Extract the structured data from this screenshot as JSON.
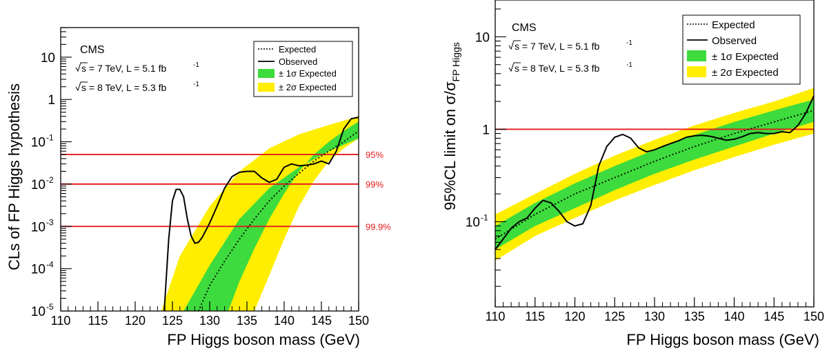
{
  "chart_data": [
    {
      "type": "line",
      "ylabel": "CLs of FP Higgs hypothesis",
      "xlabel": "FP Higgs boson mass (GeV)",
      "xlim": [
        110,
        150
      ],
      "ylim": [
        1e-05,
        50
      ],
      "log_y": true,
      "x_ticks": [
        "110",
        "115",
        "120",
        "125",
        "130",
        "135",
        "140",
        "145",
        "150"
      ],
      "y_ticks": [
        {
          "value": 1e-05,
          "base": "10",
          "exp": "-5"
        },
        {
          "value": 0.0001,
          "base": "10",
          "exp": "-4"
        },
        {
          "value": 0.001,
          "base": "10",
          "exp": "-3"
        },
        {
          "value": 0.01,
          "base": "10",
          "exp": "-2"
        },
        {
          "value": 0.1,
          "base": "10",
          "exp": "-1"
        },
        {
          "value": 1,
          "base": "1",
          "exp": ""
        },
        {
          "value": 10,
          "base": "10",
          "exp": ""
        }
      ],
      "annotation": {
        "cms": "CMS",
        "line1_prefix": "s = 7 TeV, L = 5.1 fb",
        "line2_prefix": "s = 8 TeV, L = 5.3 fb",
        "sup": "-1"
      },
      "legend_position": "top-right",
      "legend": [
        "Expected",
        "Observed",
        "± 1σ Expected",
        "± 2σ Expected"
      ],
      "reference_lines": [
        {
          "y": 0.05,
          "label": "95%"
        },
        {
          "y": 0.01,
          "label": "99%"
        },
        {
          "y": 0.001,
          "label": "99.9%"
        }
      ],
      "expected": {
        "x": [
          128.5,
          130,
          132,
          134,
          136,
          138,
          140,
          142,
          144,
          146,
          148,
          150
        ],
        "y": [
          1e-05,
          4e-05,
          0.00015,
          0.0005,
          0.0015,
          0.004,
          0.009,
          0.018,
          0.035,
          0.06,
          0.1,
          0.18
        ]
      },
      "band1_lo": {
        "x": [
          126.5,
          130,
          134,
          138,
          142,
          146,
          150
        ],
        "y": [
          1e-05,
          0.00012,
          0.0015,
          0.008,
          0.025,
          0.06,
          0.12
        ]
      },
      "band1_hi": {
        "x": [
          132.5,
          134,
          136,
          138,
          140,
          142,
          144,
          146,
          148,
          150
        ],
        "y": [
          1e-05,
          5e-05,
          0.0003,
          0.0015,
          0.006,
          0.02,
          0.05,
          0.1,
          0.18,
          0.3
        ]
      },
      "band2_lo": {
        "x": [
          123.5,
          126,
          130,
          134,
          138,
          142,
          146,
          150
        ],
        "y": [
          1e-05,
          0.0002,
          0.003,
          0.02,
          0.07,
          0.15,
          0.25,
          0.4
        ]
      },
      "band2_hi": {
        "x": [
          136,
          138,
          140,
          142,
          144,
          146,
          148,
          150
        ],
        "y": [
          1e-05,
          7e-05,
          0.0005,
          0.003,
          0.012,
          0.035,
          0.07,
          0.12
        ]
      },
      "observed": {
        "x": [
          123.9,
          124.5,
          125,
          125.5,
          126,
          126.5,
          127,
          127.5,
          128,
          128.5,
          129,
          130,
          131,
          132,
          133,
          134,
          135,
          136,
          137,
          138,
          139,
          140,
          141,
          142,
          143,
          144,
          145,
          146,
          147,
          148,
          149,
          150
        ],
        "y": [
          1e-05,
          0.0005,
          0.004,
          0.0075,
          0.0075,
          0.005,
          0.0015,
          0.0006,
          0.0004,
          0.00042,
          0.00055,
          0.0012,
          0.003,
          0.008,
          0.015,
          0.019,
          0.02,
          0.02,
          0.014,
          0.011,
          0.013,
          0.025,
          0.03,
          0.027,
          0.028,
          0.03,
          0.035,
          0.03,
          0.06,
          0.2,
          0.35,
          0.38
        ]
      }
    },
    {
      "type": "line",
      "ylabel_prefix": "95%CL limit on σ/σ",
      "ylabel_sub": "FP Higgs",
      "xlabel": "FP Higgs boson mass (GeV)",
      "xlim": [
        110,
        150
      ],
      "ylim": [
        0.012,
        25
      ],
      "log_y": true,
      "x_ticks": [
        "110",
        "115",
        "120",
        "125",
        "130",
        "135",
        "140",
        "145",
        "150"
      ],
      "y_ticks": [
        {
          "value": 0.1,
          "base": "10",
          "exp": "-1"
        },
        {
          "value": 1,
          "base": "1",
          "exp": ""
        },
        {
          "value": 10,
          "base": "10",
          "exp": ""
        }
      ],
      "annotation": {
        "cms": "CMS",
        "line1_prefix": "s = 7 TeV, L = 5.1 fb",
        "line2_prefix": "s = 8 TeV, L = 5.3 fb",
        "sup": "-1"
      },
      "legend_position": "top-right",
      "legend": [
        "Expected",
        "Observed",
        "± 1σ Expected",
        "± 2σ Expected"
      ],
      "reference_lines": [
        {
          "y": 1
        }
      ],
      "expected": {
        "x": [
          110,
          115,
          120,
          125,
          130,
          135,
          140,
          145,
          150
        ],
        "y": [
          0.065,
          0.12,
          0.2,
          0.3,
          0.45,
          0.65,
          0.9,
          1.2,
          1.6
        ]
      },
      "band1": {
        "x": [
          110,
          115,
          120,
          125,
          130,
          135,
          140,
          145,
          150
        ],
        "lo": [
          0.05,
          0.09,
          0.14,
          0.22,
          0.33,
          0.47,
          0.65,
          0.9,
          1.2
        ],
        "hi": [
          0.09,
          0.16,
          0.26,
          0.4,
          0.6,
          0.87,
          1.2,
          1.6,
          2.1
        ]
      },
      "band2": {
        "x": [
          110,
          115,
          120,
          125,
          130,
          135,
          140,
          145,
          150
        ],
        "lo": [
          0.038,
          0.07,
          0.11,
          0.17,
          0.25,
          0.36,
          0.5,
          0.68,
          0.9
        ],
        "hi": [
          0.12,
          0.2,
          0.33,
          0.52,
          0.77,
          1.1,
          1.5,
          2.0,
          2.8
        ]
      },
      "observed": {
        "x": [
          110,
          111,
          112,
          113,
          114,
          115,
          116,
          117,
          118,
          119,
          120,
          121,
          122,
          123,
          124,
          125,
          126,
          127,
          128,
          129,
          130,
          131,
          132,
          133,
          134,
          135,
          136,
          137,
          138,
          139,
          140,
          141,
          142,
          143,
          144,
          145,
          146,
          147,
          148,
          149,
          150
        ],
        "y": [
          0.05,
          0.065,
          0.085,
          0.1,
          0.11,
          0.14,
          0.17,
          0.16,
          0.13,
          0.1,
          0.09,
          0.095,
          0.15,
          0.4,
          0.65,
          0.82,
          0.88,
          0.8,
          0.63,
          0.57,
          0.6,
          0.65,
          0.7,
          0.75,
          0.82,
          0.85,
          0.86,
          0.84,
          0.8,
          0.76,
          0.78,
          0.83,
          0.9,
          0.92,
          0.9,
          0.9,
          0.94,
          0.92,
          1.1,
          1.5,
          2.3
        ]
      }
    }
  ]
}
